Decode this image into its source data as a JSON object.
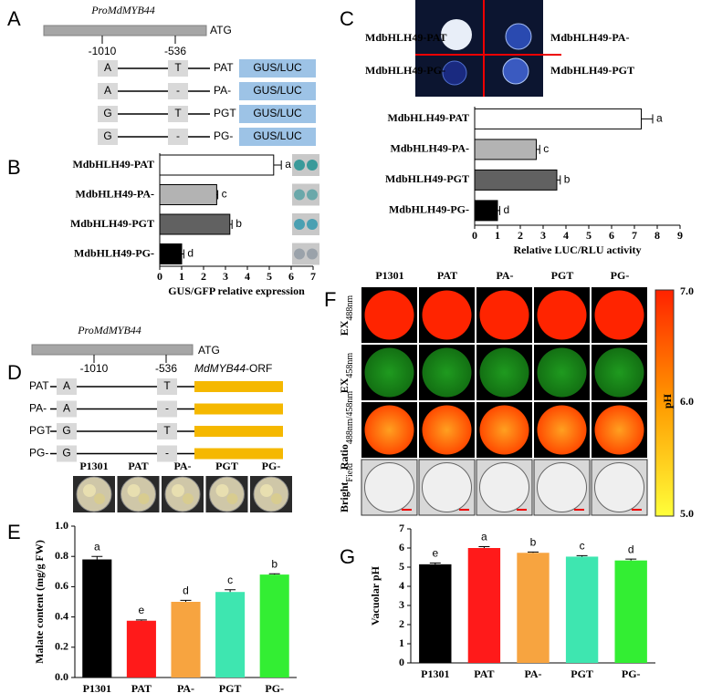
{
  "panels": {
    "A": {
      "label": "A",
      "promoter": "ProMdMYB44",
      "start": "ATG",
      "sites": [
        "-1010",
        "-536"
      ],
      "constructs": [
        {
          "snp1": "A",
          "snp2": "T",
          "name": "PAT",
          "reporter": "GUS/LUC"
        },
        {
          "snp1": "A",
          "snp2": "-",
          "name": "PA-",
          "reporter": "GUS/LUC"
        },
        {
          "snp1": "G",
          "snp2": "T",
          "name": "PGT",
          "reporter": "GUS/LUC"
        },
        {
          "snp1": "G",
          "snp2": "-",
          "name": "PG-",
          "reporter": "GUS/LUC"
        }
      ]
    },
    "B": {
      "label": "B"
    },
    "C": {
      "label": "C",
      "image_labels": [
        "MdbHLH49-PAT",
        "MdbHLH49-PA-",
        "MdbHLH49-PG-",
        "MdbHLH49-PGT"
      ]
    },
    "D": {
      "label": "D",
      "promoter": "ProMdMYB44",
      "start": "ATG",
      "sites": [
        "-1010",
        "-536"
      ],
      "orf_gene": "MdMYB44",
      "orf_suffix": "-ORF",
      "constructs": [
        {
          "name": "PAT",
          "snp1": "A",
          "snp2": "T"
        },
        {
          "name": "PA-",
          "snp1": "A",
          "snp2": "-"
        },
        {
          "name": "PGT",
          "snp1": "G",
          "snp2": "T"
        },
        {
          "name": "PG-",
          "snp1": "G",
          "snp2": "-"
        }
      ]
    },
    "E": {
      "label": "E",
      "plate_labels": [
        "P1301",
        "PAT",
        "PA-",
        "PGT",
        "PG-"
      ]
    },
    "F": {
      "label": "F",
      "columns": [
        "P1301",
        "PAT",
        "PA-",
        "PGT",
        "PG-"
      ],
      "rows": [
        {
          "main": "EX",
          "sub": "488nm"
        },
        {
          "main": "EX",
          "sub": "458nm"
        },
        {
          "main": "Ratio",
          "sub": "488nm/458nm"
        },
        {
          "main": "Bright",
          "sub": "Field"
        }
      ],
      "colorbar_title": "pH",
      "colorbar_labels": [
        "7.0",
        "6.0",
        "5.0"
      ]
    },
    "G": {
      "label": "G"
    }
  },
  "chart_data": [
    {
      "type": "hbar",
      "categories": [
        "MdbHLH49-PAT",
        "MdbHLH49-PA-",
        "MdbHLH49-PGT",
        "MdbHLH49-PG-"
      ],
      "values": [
        5.2,
        2.6,
        3.2,
        1.0
      ],
      "errors": [
        0.35,
        0.05,
        0.1,
        0.1
      ],
      "letters": [
        "a",
        "c",
        "b",
        "d"
      ],
      "colors": [
        "#ffffff",
        "#b3b3b3",
        "#616161",
        "#000000"
      ],
      "xlim": [
        0,
        7
      ],
      "xticks": [
        0,
        1,
        2,
        3,
        4,
        5,
        6,
        7
      ],
      "xlabel": "GUS/GFP relative expression"
    },
    {
      "type": "hbar",
      "categories": [
        "MdbHLH49-PAT",
        "MdbHLH49-PA-",
        "MdbHLH49-PGT",
        "MdbHLH49-PG-"
      ],
      "values": [
        7.3,
        2.7,
        3.6,
        1.0
      ],
      "errors": [
        0.5,
        0.15,
        0.15,
        0.1
      ],
      "letters": [
        "a",
        "c",
        "b",
        "d"
      ],
      "colors": [
        "#ffffff",
        "#b3b3b3",
        "#616161",
        "#000000"
      ],
      "xlim": [
        0,
        9
      ],
      "xticks": [
        0,
        1,
        2,
        3,
        4,
        5,
        6,
        7,
        8,
        9
      ],
      "xlabel": "Relative LUC/RLU activity"
    },
    {
      "type": "bar",
      "categories": [
        "P1301",
        "PAT",
        "PA-",
        "PGT",
        "PG-"
      ],
      "values": [
        0.78,
        0.375,
        0.5,
        0.565,
        0.68
      ],
      "errors": [
        0.02,
        0.005,
        0.01,
        0.015,
        0.005
      ],
      "letters": [
        "a",
        "e",
        "d",
        "c",
        "b"
      ],
      "colors": [
        "#000000",
        "#ff1a1a",
        "#f7a440",
        "#3ee6b0",
        "#33ee33"
      ],
      "ylim": [
        0,
        1.0
      ],
      "yticks": [
        {
          "value": 0,
          "label": "0.0"
        },
        0.2,
        0.4,
        0.6,
        0.8,
        {
          "value": 1.0,
          "label": "1.0"
        }
      ],
      "ylabel": "Malate content (mg/g FW)"
    },
    {
      "type": "bar",
      "categories": [
        "P1301",
        "PAT",
        "PA-",
        "PGT",
        "PG-"
      ],
      "values": [
        5.15,
        6.0,
        5.75,
        5.55,
        5.35
      ],
      "errors": [
        0.07,
        0.07,
        0.04,
        0.05,
        0.07
      ],
      "letters": [
        "e",
        "a",
        "b",
        "c",
        "d"
      ],
      "colors": [
        "#000000",
        "#ff1a1a",
        "#f7a440",
        "#3ee6b0",
        "#33ee33"
      ],
      "ylim": [
        0,
        7
      ],
      "yticks": [
        0,
        1,
        2,
        3,
        4,
        5,
        6,
        7
      ],
      "ylabel": "Vacuolar pH"
    }
  ]
}
